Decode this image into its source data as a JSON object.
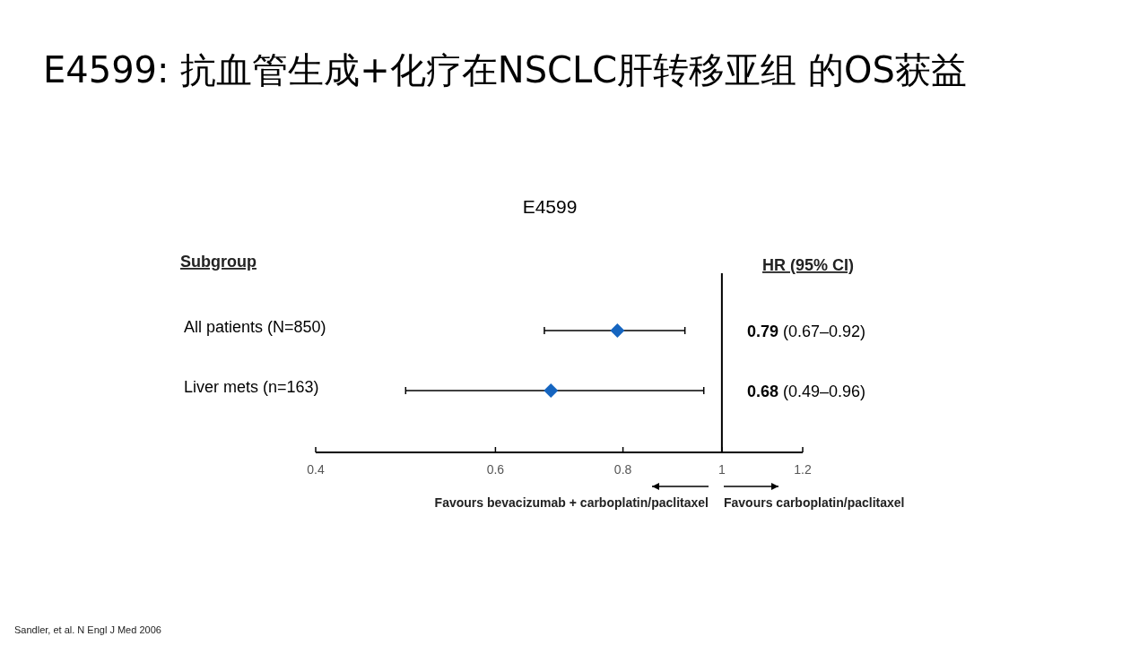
{
  "chart_data": {
    "type": "scatter",
    "orientation": "horizontal",
    "title": "E4599: 抗血管生成+化疗在NSCLC肝转移亚组 的OS获益",
    "subtitle": "E4599",
    "categories": [
      "All patients (N=850)",
      "Liver mets (n=163)"
    ],
    "values": [
      0.79,
      0.68
    ],
    "errors": [
      [
        0.67,
        0.92
      ],
      [
        0.49,
        0.96
      ]
    ],
    "color": "#1565c0",
    "marker": "diamond",
    "log": "x",
    "xlim": [
      0.4,
      1.2
    ],
    "xticks": [
      0.4,
      0.6,
      0.8,
      1,
      1.2
    ],
    "ref_lines": [
      {
        "axis": "x",
        "value": 1,
        "color": "#000000"
      }
    ],
    "annotations": [
      "Subgroup",
      "HR (95% CI)",
      "Favours bevacizumab + carboplatin/paclitaxel",
      "Favours carboplatin/paclitaxel",
      "Sandler, et al. N Engl J Med 2006",
      "**0.79** (0.67–0.92)",
      "**0.68** (0.49–0.96)"
    ]
  }
}
